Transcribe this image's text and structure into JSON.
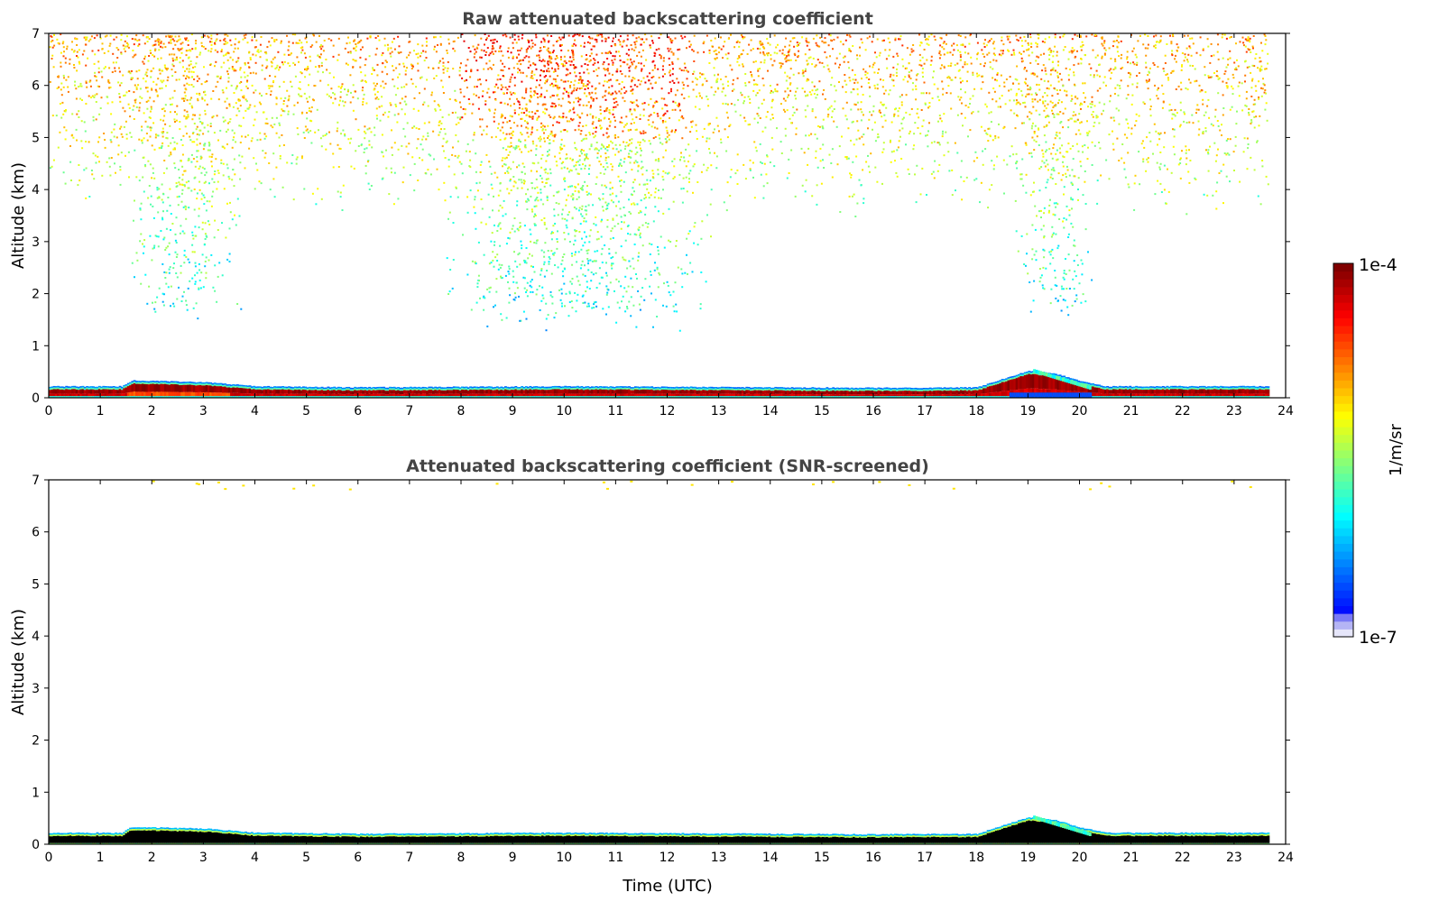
{
  "chart_data": [
    {
      "type": "heatmap",
      "title": "Raw attenuated backscattering coefficient",
      "xlabel": "",
      "ylabel": "Altitude (km)",
      "xlim": [
        0,
        24
      ],
      "ylim": [
        0,
        7
      ],
      "xticks": [
        "0",
        "1",
        "2",
        "3",
        "4",
        "5",
        "6",
        "7",
        "8",
        "9",
        "10",
        "11",
        "12",
        "13",
        "14",
        "15",
        "16",
        "17",
        "18",
        "19",
        "20",
        "21",
        "22",
        "23",
        "24"
      ],
      "yticks": [
        "0",
        "1",
        "2",
        "3",
        "4",
        "5",
        "6",
        "7"
      ],
      "data_end_hour": 23.65,
      "boundary_layer_top_km": {
        "hours": [
          0,
          1.4,
          1.6,
          3,
          4,
          6,
          10,
          12,
          16,
          18,
          19,
          19.5,
          20,
          20.5,
          23.65
        ],
        "values": [
          0.22,
          0.22,
          0.33,
          0.3,
          0.22,
          0.2,
          0.22,
          0.21,
          0.19,
          0.2,
          0.52,
          0.47,
          0.32,
          0.22,
          0.22
        ]
      },
      "noise_regions": [
        {
          "hours": [
            1.4,
            3.8
          ],
          "altitude_km": [
            1.4,
            4.5
          ],
          "level": "low"
        },
        {
          "hours": [
            7.5,
            13
          ],
          "altitude_km": [
            1.2,
            7
          ],
          "level": "high"
        },
        {
          "hours": [
            18.7,
            20.3
          ],
          "altitude_km": [
            1.3,
            4.5
          ],
          "level": "low"
        }
      ]
    },
    {
      "type": "heatmap",
      "title": "Attenuated backscattering coefficient (SNR-screened)",
      "xlabel": "Time (UTC)",
      "ylabel": "Altitude (km)",
      "xlim": [
        0,
        24
      ],
      "ylim": [
        0,
        7
      ],
      "xticks": [
        "0",
        "1",
        "2",
        "3",
        "4",
        "5",
        "6",
        "7",
        "8",
        "9",
        "10",
        "11",
        "12",
        "13",
        "14",
        "15",
        "16",
        "17",
        "18",
        "19",
        "20",
        "21",
        "22",
        "23",
        "24"
      ],
      "yticks": [
        "0",
        "1",
        "2",
        "3",
        "4",
        "5",
        "6",
        "7"
      ],
      "data_end_hour": 23.65
    }
  ],
  "colorbar": {
    "label": "1/m/sr",
    "min_label": "1e-7",
    "max_label": "1e-4",
    "scale": "log",
    "range": [
      1e-07,
      0.0001
    ]
  }
}
